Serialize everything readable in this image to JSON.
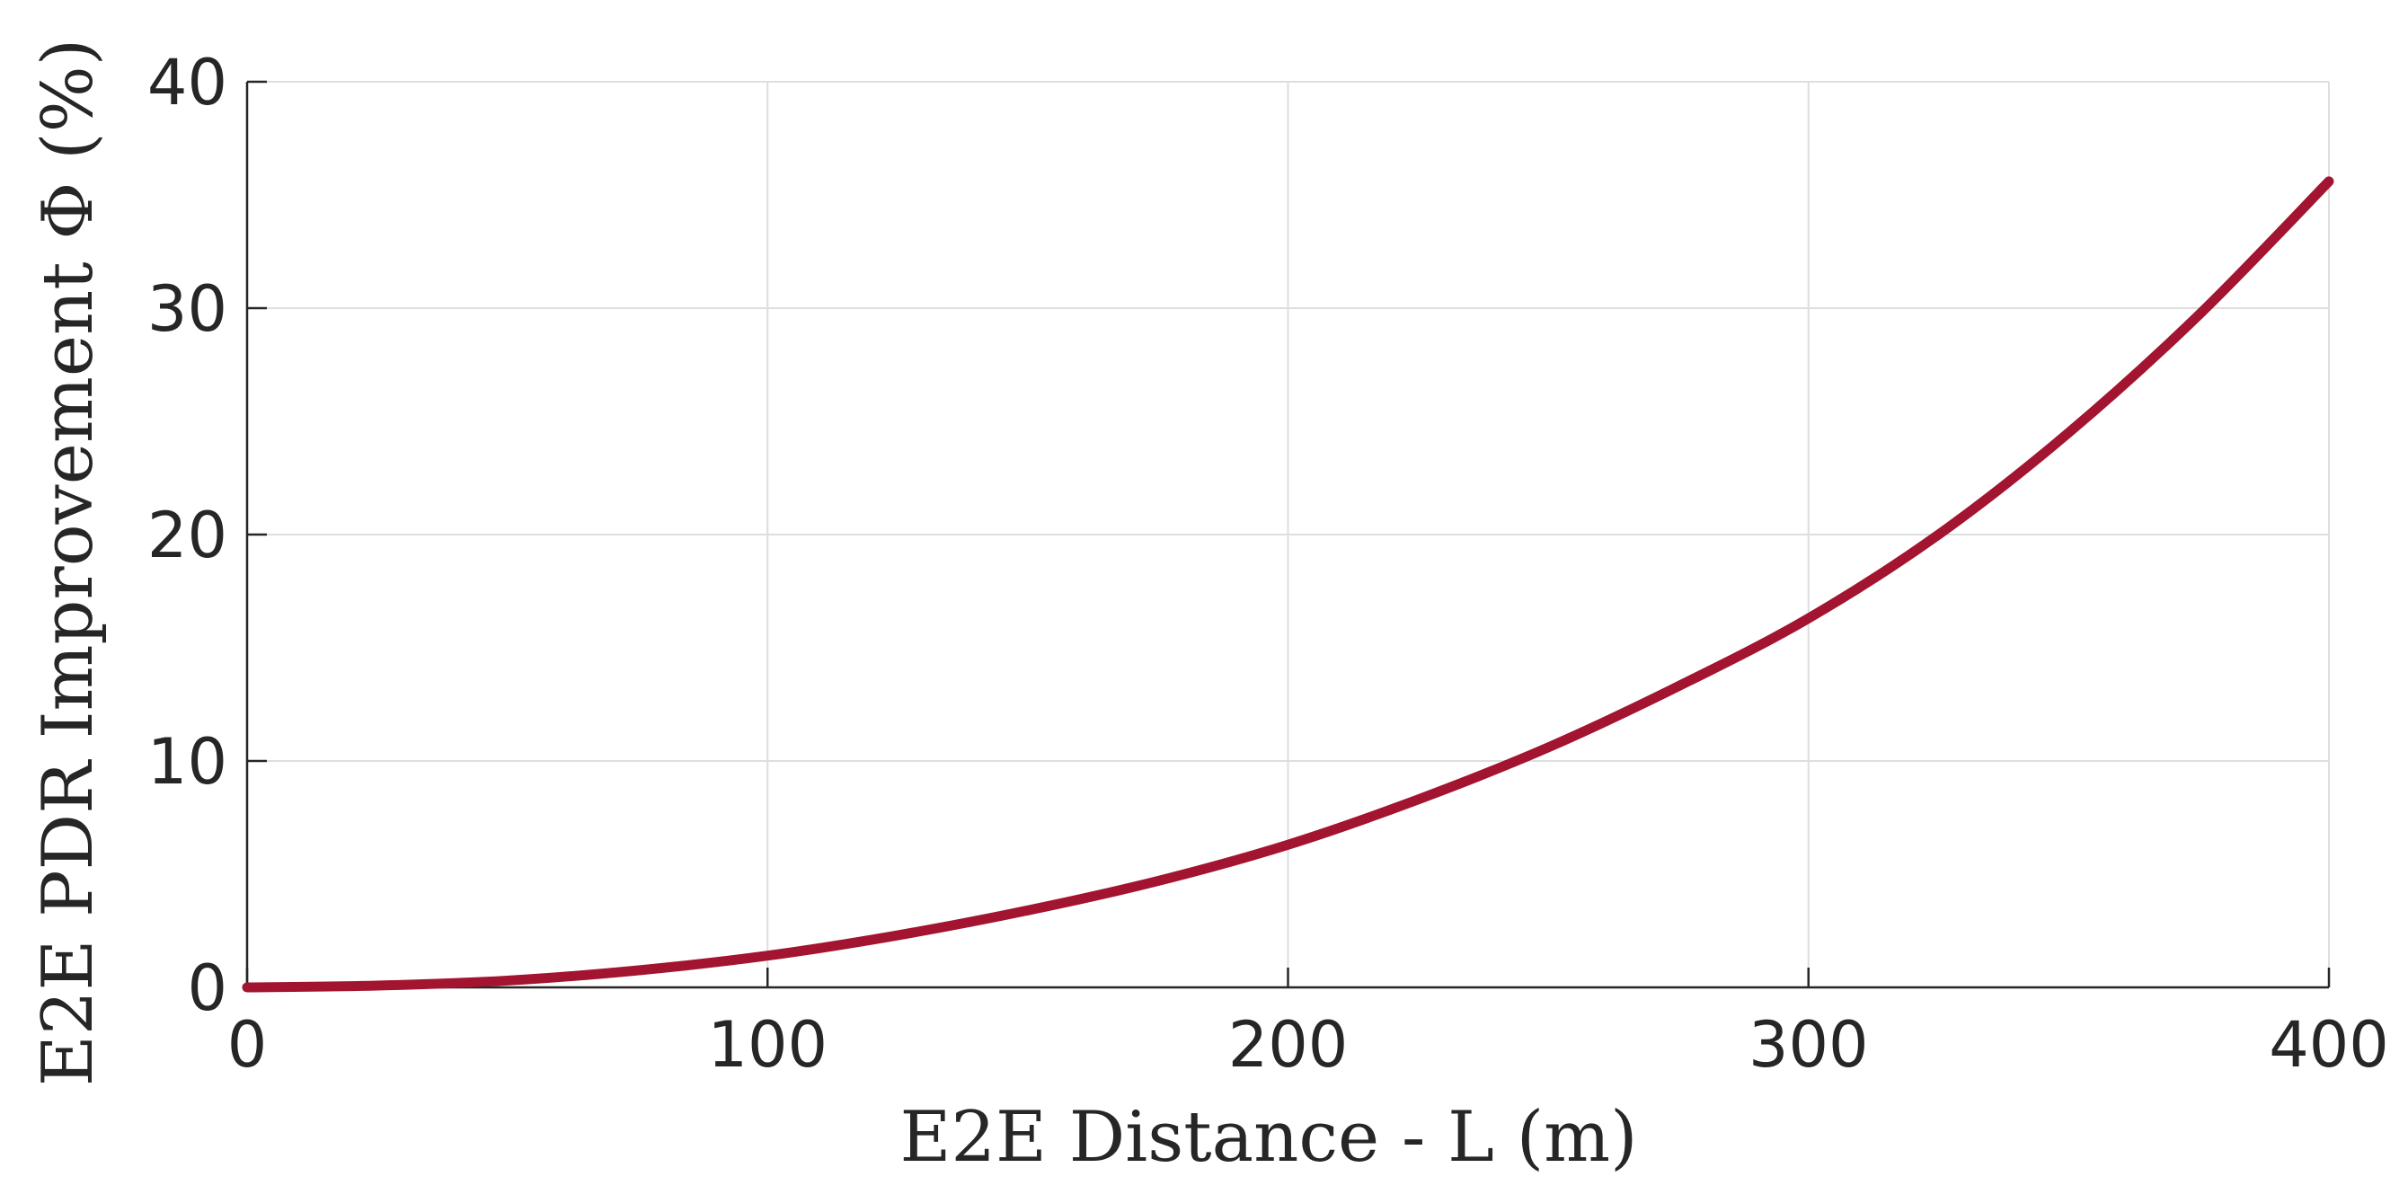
{
  "chart_data": {
    "type": "line",
    "title": "",
    "xlabel": "E2E Distance - L (m)",
    "ylabel": "E2E PDR Improvement Φ (%)",
    "xlim": [
      0,
      400
    ],
    "ylim": [
      0,
      40
    ],
    "xticks": [
      "0",
      "100",
      "200",
      "300",
      "400"
    ],
    "yticks": [
      "0",
      "10",
      "20",
      "30",
      "40"
    ],
    "grid": true,
    "series": [
      {
        "color": "#a2142f",
        "x": [
          0,
          25,
          50,
          75,
          100,
          125,
          150,
          175,
          200,
          225,
          250,
          275,
          300,
          325,
          350,
          375,
          400
        ],
        "y": [
          0,
          0.08,
          0.3,
          0.75,
          1.4,
          2.3,
          3.4,
          4.7,
          6.3,
          8.3,
          10.6,
          13.3,
          16.3,
          20.0,
          24.5,
          29.7,
          35.6
        ]
      }
    ]
  }
}
